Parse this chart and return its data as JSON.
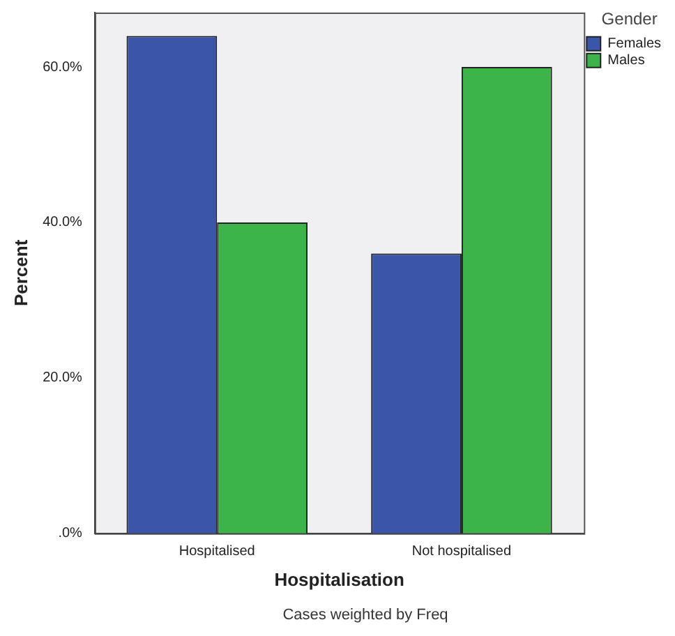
{
  "chart_data": {
    "type": "bar",
    "xlabel": "Hospitalisation",
    "ylabel": "Percent",
    "legend_title": "Gender",
    "categories": [
      "Hospitalised",
      "Not hospitalised"
    ],
    "series": [
      {
        "name": "Females",
        "color": "#3b56a8",
        "values": [
          64,
          36
        ]
      },
      {
        "name": "Males",
        "color": "#3cb44a",
        "values": [
          40,
          60
        ]
      }
    ],
    "ylim": [
      0,
      67
    ],
    "yticks": [
      {
        "value": 0,
        "label": ".0%"
      },
      {
        "value": 20,
        "label": "20.0%"
      },
      {
        "value": 40,
        "label": "40.0%"
      },
      {
        "value": 60,
        "label": "60.0%"
      }
    ],
    "grid": false,
    "legend": "top right",
    "annotations": [
      "Cases weighted by Freq"
    ]
  }
}
